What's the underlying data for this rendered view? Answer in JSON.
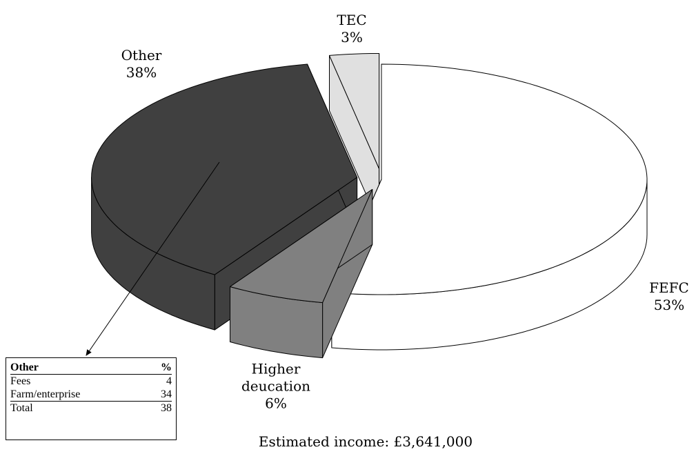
{
  "chart_data": {
    "type": "pie",
    "categories": [
      "FEFC",
      "Higher deucation",
      "Other",
      "TEC"
    ],
    "values": [
      53,
      6,
      38,
      3
    ],
    "value_labels": [
      "53%",
      "6%",
      "38%",
      "3%"
    ],
    "colors": [
      "#ffffff",
      "#808080",
      "#404040",
      "#e0e0e0"
    ],
    "annotation": "Estimated income: £3,641,000",
    "table": {
      "header": [
        "Other",
        "%"
      ],
      "rows": [
        [
          "Fees",
          4
        ],
        [
          "Farm/enterprise",
          34
        ]
      ],
      "total": [
        "Total",
        38
      ]
    }
  }
}
